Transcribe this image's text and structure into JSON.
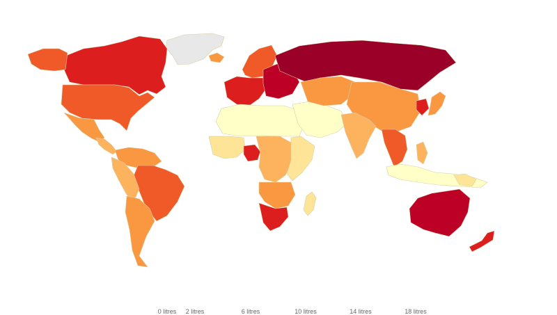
{
  "map": {
    "colors": {
      "no_data": "#e8e8e8",
      "bin_0": "#ffffc8",
      "bin_1": "#fde496",
      "bin_2": "#fdb25e",
      "bin_3": "#f99841",
      "bin_4": "#f05a28",
      "bin_5": "#dc1e1e",
      "bin_6": "#bd0026",
      "bin_7": "#9b0029",
      "bin_8": "#7a0028"
    },
    "regions": [
      {
        "name": "greenland",
        "bin": "no_data"
      },
      {
        "name": "canada",
        "bin": "bin_5"
      },
      {
        "name": "alaska",
        "bin": "bin_4"
      },
      {
        "name": "united-states",
        "bin": "bin_4"
      },
      {
        "name": "mexico",
        "bin": "bin_3"
      },
      {
        "name": "central-america",
        "bin": "bin_2"
      },
      {
        "name": "northern-south-america",
        "bin": "bin_3"
      },
      {
        "name": "brazil",
        "bin": "bin_4"
      },
      {
        "name": "andean-south-america",
        "bin": "bin_2"
      },
      {
        "name": "argentina-chile",
        "bin": "bin_3"
      },
      {
        "name": "iceland",
        "bin": "bin_3"
      },
      {
        "name": "scandinavia",
        "bin": "bin_4"
      },
      {
        "name": "western-europe",
        "bin": "bin_5"
      },
      {
        "name": "eastern-europe",
        "bin": "bin_6"
      },
      {
        "name": "russia",
        "bin": "bin_7"
      },
      {
        "name": "north-africa",
        "bin": "bin_0"
      },
      {
        "name": "west-africa",
        "bin": "bin_1"
      },
      {
        "name": "nigeria",
        "bin": "bin_5"
      },
      {
        "name": "central-africa",
        "bin": "bin_2"
      },
      {
        "name": "east-africa",
        "bin": "bin_1"
      },
      {
        "name": "southern-africa",
        "bin": "bin_3"
      },
      {
        "name": "south-africa",
        "bin": "bin_5"
      },
      {
        "name": "madagascar",
        "bin": "bin_1"
      },
      {
        "name": "middle-east",
        "bin": "bin_0"
      },
      {
        "name": "central-asia",
        "bin": "bin_3"
      },
      {
        "name": "china-mongolia",
        "bin": "bin_3"
      },
      {
        "name": "india",
        "bin": "bin_2"
      },
      {
        "name": "korea",
        "bin": "bin_5"
      },
      {
        "name": "japan",
        "bin": "bin_3"
      },
      {
        "name": "southeast-asia",
        "bin": "bin_4"
      },
      {
        "name": "indonesia",
        "bin": "bin_0"
      },
      {
        "name": "philippines",
        "bin": "bin_2"
      },
      {
        "name": "papua-new-guinea",
        "bin": "bin_1"
      },
      {
        "name": "australia",
        "bin": "bin_6"
      },
      {
        "name": "new-zealand",
        "bin": "bin_5"
      }
    ]
  },
  "legend": {
    "labels": [
      "0 litres",
      "2 litres",
      "6 litres",
      "10 litres",
      "14 litres",
      "18 litres"
    ]
  }
}
